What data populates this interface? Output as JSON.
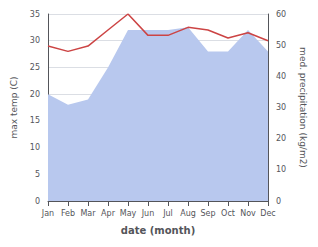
{
  "chart_data": {
    "type": "line",
    "categories": [
      "Jan",
      "Feb",
      "Mar",
      "Apr",
      "May",
      "Jun",
      "Jul",
      "Aug",
      "Sep",
      "Oct",
      "Nov",
      "Dec"
    ],
    "series": [
      {
        "type": "area",
        "color": "#b8c8ee",
        "values": [
          20,
          18,
          19,
          25,
          32,
          32,
          32,
          32.5,
          28,
          28,
          32,
          28
        ]
      },
      {
        "type": "line",
        "color": "#cc4444",
        "values": [
          29,
          28,
          29,
          32,
          35,
          31,
          31,
          32.5,
          32,
          30.5,
          31.5,
          30
        ]
      }
    ],
    "xlabel": "date (month)",
    "ylabel": "max temp (C)",
    "y2label": "med. precipitation (kg/m2)",
    "ylim": [
      0,
      35
    ],
    "yticks": [
      0,
      5,
      10,
      15,
      20,
      25,
      30,
      35
    ],
    "y2lim": [
      0,
      60
    ],
    "y2ticks": [
      0,
      10,
      20,
      30,
      40,
      50,
      60
    ],
    "grid": true
  }
}
